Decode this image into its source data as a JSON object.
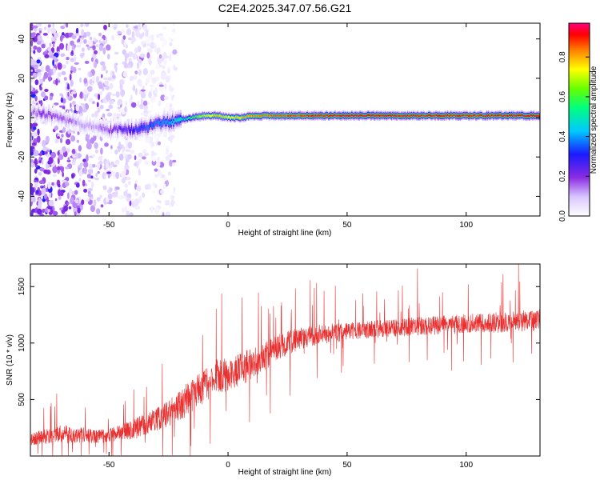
{
  "title": "C2E4.2025.347.07.56.G21",
  "chart_data": [
    {
      "type": "heatmap",
      "title": "C2E4.2025.347.07.56.G21",
      "xlabel": "Height of straight line (km)",
      "ylabel": "Frequency (Hz)",
      "xlim": [
        -83,
        131
      ],
      "ylim": [
        -50,
        48
      ],
      "x_ticks": [
        -50,
        0,
        50,
        100
      ],
      "x_tick_labels": [
        "-50",
        "0",
        "50",
        "100"
      ],
      "y_ticks": [
        -40,
        -20,
        0,
        20,
        40
      ],
      "y_tick_labels": [
        "-40",
        "-20",
        "0",
        "20",
        "40"
      ],
      "colorbar": {
        "label": "Normalized spectral amplitude",
        "range": [
          0,
          0.97
        ],
        "ticks": [
          0.0,
          0.2,
          0.4,
          0.6,
          0.8
        ],
        "tick_labels": [
          "0.0",
          "0.2",
          "0.4",
          "0.6",
          "0.8"
        ]
      },
      "ridge": {
        "description": "dominant frequency of the signal versus height",
        "x": [
          -83,
          -78,
          -72,
          -66,
          -60,
          -55,
          -50,
          -45,
          -40,
          -35,
          -30,
          -25,
          -20,
          -15,
          -10,
          -5,
          0,
          5,
          10,
          20,
          30,
          40,
          50,
          60,
          70,
          80,
          90,
          100,
          110,
          120,
          131
        ],
        "y": [
          3,
          2,
          0,
          -2,
          -4,
          -5,
          -6,
          -6,
          -6,
          -5,
          -3,
          -2,
          -1,
          0,
          1,
          1,
          0,
          0,
          1,
          1,
          1,
          1,
          1,
          1,
          1,
          1,
          1,
          1,
          1,
          1,
          1
        ],
        "amplitude": [
          0.15,
          0.2,
          0.18,
          0.15,
          0.12,
          0.14,
          0.18,
          0.25,
          0.3,
          0.35,
          0.38,
          0.42,
          0.5,
          0.6,
          0.75,
          0.8,
          0.75,
          0.8,
          0.85,
          0.88,
          0.9,
          0.93,
          0.95,
          0.95,
          0.93,
          0.92,
          0.93,
          0.92,
          0.93,
          0.94,
          0.95
        ]
      },
      "noise_region_x": [
        -83,
        -25
      ]
    },
    {
      "type": "line",
      "xlabel": "Height of straight line (km)",
      "ylabel": "SNR (10 * v/v)",
      "xlim": [
        -83,
        131
      ],
      "ylim": [
        0,
        1700
      ],
      "x_ticks": [
        -50,
        0,
        50,
        100
      ],
      "x_tick_labels": [
        "-50",
        "0",
        "50",
        "100"
      ],
      "y_ticks": [
        500,
        1000,
        1500
      ],
      "y_tick_labels": [
        "500",
        "1000",
        "1500"
      ],
      "color": "#e83030",
      "series": [
        {
          "name": "SNR",
          "x": [
            -83,
            -75,
            -70,
            -65,
            -60,
            -55,
            -50,
            -45,
            -40,
            -35,
            -30,
            -25,
            -20,
            -15,
            -10,
            -5,
            0,
            5,
            10,
            15,
            20,
            25,
            30,
            40,
            50,
            60,
            70,
            80,
            90,
            100,
            110,
            120,
            131
          ],
          "values": [
            150,
            180,
            200,
            180,
            190,
            170,
            180,
            210,
            230,
            280,
            330,
            380,
            450,
            540,
            620,
            700,
            720,
            760,
            820,
            880,
            950,
            1000,
            1040,
            1080,
            1100,
            1120,
            1130,
            1150,
            1160,
            1170,
            1180,
            1190,
            1200
          ],
          "spread": [
            60,
            70,
            80,
            75,
            70,
            60,
            60,
            70,
            90,
            100,
            110,
            120,
            140,
            150,
            160,
            160,
            150,
            150,
            140,
            130,
            120,
            110,
            100,
            90,
            80,
            80,
            80,
            85,
            85,
            90,
            90,
            95,
            100
          ]
        }
      ]
    }
  ]
}
